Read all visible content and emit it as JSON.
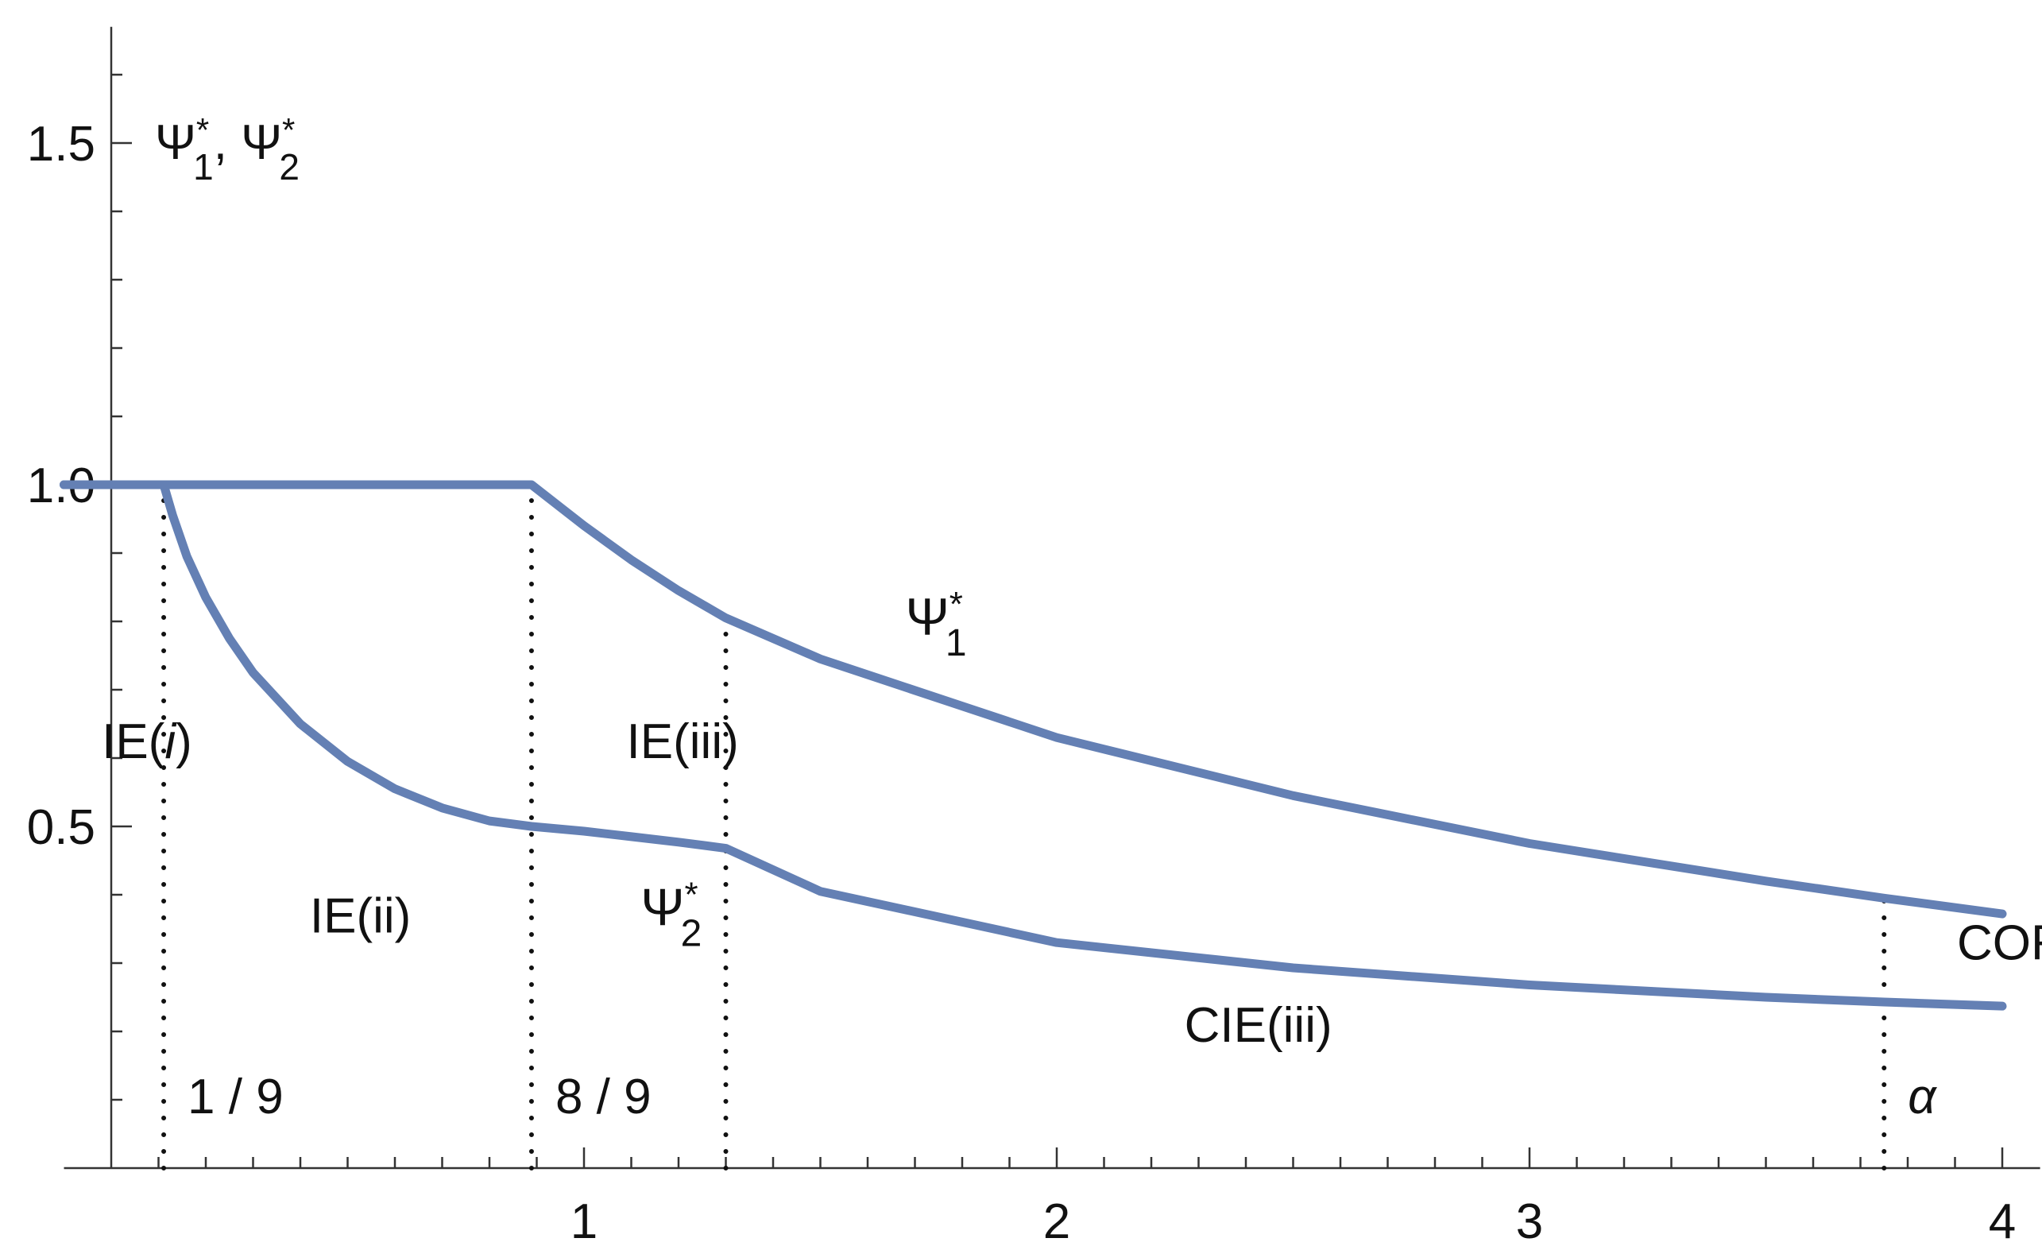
{
  "chart_data": {
    "type": "line",
    "title": "",
    "xlabel": "",
    "ylabel": "",
    "xlim": [
      -0.1,
      4.08
    ],
    "ylim": [
      0,
      1.67
    ],
    "x_ticks": [
      1,
      2,
      3,
      4
    ],
    "x_tick_labels": [
      "1",
      "2",
      "3",
      "4"
    ],
    "y_ticks": [
      0.5,
      1.0,
      1.5
    ],
    "y_tick_labels": [
      "0.5",
      "1.0",
      "1.5"
    ],
    "y_axis_title": {
      "main": "Ψ",
      "sub1": "1",
      "sep": ", Ψ",
      "sub2": "2",
      "sup": "*"
    },
    "series": [
      {
        "name": "Ψ1*",
        "label_main": "Ψ",
        "label_sub": "1",
        "label_sup": "*",
        "color": "#6480b4",
        "x": [
          -0.1,
          0.889,
          1.0,
          1.1,
          1.2,
          1.3,
          1.5,
          2.0,
          2.5,
          3.0,
          3.5,
          3.75,
          4.0
        ],
        "y": [
          1.0,
          1.0,
          0.94,
          0.89,
          0.845,
          0.805,
          0.745,
          0.63,
          0.545,
          0.475,
          0.42,
          0.395,
          0.372
        ]
      },
      {
        "name": "Ψ2*",
        "label_main": "Ψ",
        "label_sub": "2",
        "label_sup": "*",
        "color": "#6480b4",
        "x": [
          -0.1,
          0.111,
          0.13,
          0.16,
          0.2,
          0.25,
          0.3,
          0.4,
          0.5,
          0.6,
          0.7,
          0.8,
          0.889,
          1.0,
          1.1,
          1.2,
          1.3,
          1.5,
          2.0,
          2.5,
          3.0,
          3.5,
          3.75,
          4.0
        ],
        "y": [
          1.0,
          1.0,
          0.955,
          0.895,
          0.835,
          0.775,
          0.725,
          0.65,
          0.595,
          0.555,
          0.527,
          0.508,
          0.5,
          0.493,
          0.485,
          0.477,
          0.468,
          0.405,
          0.33,
          0.293,
          0.268,
          0.25,
          0.243,
          0.237
        ]
      }
    ],
    "reference_lines": [
      {
        "x": 0.111,
        "label": "1 / 9"
      },
      {
        "x": 0.889,
        "label": "8 / 9"
      },
      {
        "x": 1.3
      },
      {
        "x": 3.75,
        "label": "α"
      }
    ],
    "regions": [
      {
        "id": "ie-i",
        "main": "IE(",
        "italic": "i",
        "tail": ")",
        "x": -0.02,
        "y": 0.6
      },
      {
        "id": "ie-ii",
        "main": "IE(ii)",
        "x": 0.42,
        "y": 0.345
      },
      {
        "id": "ie-iii",
        "main": "IE(iii)",
        "x": 1.09,
        "y": 0.6
      },
      {
        "id": "cie-iii",
        "main": "CIE(iii)",
        "x": 2.27,
        "y": 0.185
      },
      {
        "id": "cor",
        "main": "COR",
        "x": 4.02,
        "y": 0.305
      }
    ],
    "grid": false,
    "legend": "none"
  }
}
